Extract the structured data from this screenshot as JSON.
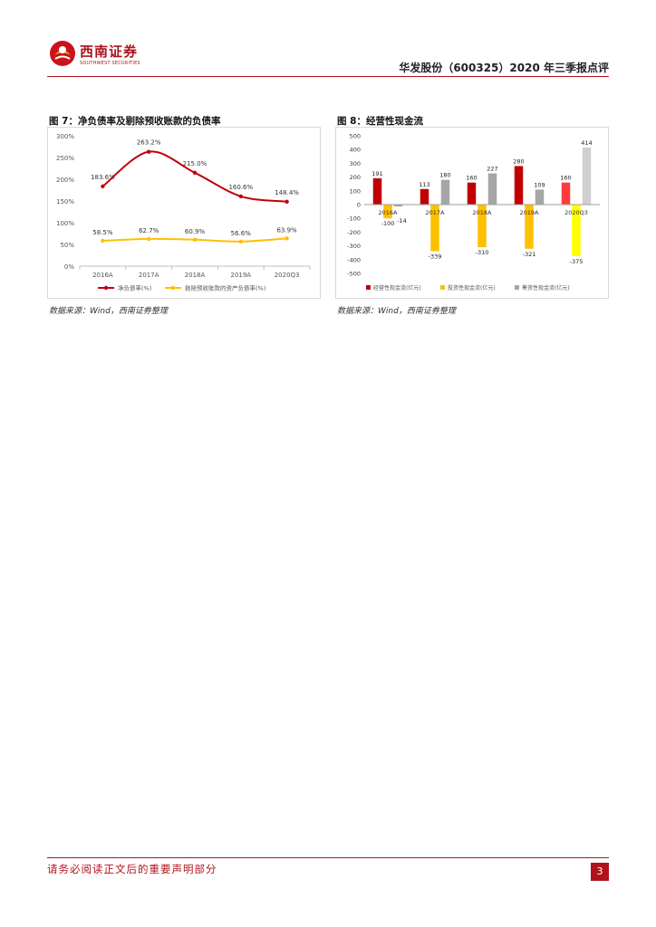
{
  "header": {
    "logo_cn": "西南证券",
    "logo_en": "SOUTHWEST SECURITIES",
    "title": "华发股份（600325）2020 年三季报点评"
  },
  "figures": [
    {
      "title": "图 7：净负债率及剔除预收账款的负债率",
      "source": "数据来源：Wind，西南证券整理"
    },
    {
      "title": "图 8：经营性现金流",
      "source": "数据来源：Wind，西南证券整理"
    }
  ],
  "chart_data": [
    {
      "type": "line",
      "x": [
        "2016A",
        "2017A",
        "2018A",
        "2019A",
        "2020Q3"
      ],
      "series": [
        {
          "name": "净负债率(%)",
          "values": [
            183.6,
            263.2,
            215.0,
            160.6,
            148.4
          ],
          "labels": [
            "183.6%",
            "263.2%",
            "215.0%",
            "160.6%",
            "148.4%"
          ],
          "color": "#c0000a"
        },
        {
          "name": "剔除预收账款的资产负债率(%)",
          "values": [
            58.5,
            62.7,
            60.9,
            56.6,
            63.9
          ],
          "labels": [
            "58.5%",
            "62.7%",
            "60.9%",
            "56.6%",
            "63.9%"
          ],
          "color": "#ffc000"
        }
      ],
      "y_ticks": [
        "0%",
        "50%",
        "100%",
        "150%",
        "200%",
        "250%",
        "300%"
      ],
      "ylim": [
        0,
        300
      ]
    },
    {
      "type": "bar",
      "categories": [
        "2016A",
        "2017A",
        "2018A",
        "2019A",
        "2020Q3"
      ],
      "series": [
        {
          "name": "经营性现金流(亿元)",
          "values": [
            191,
            113,
            160,
            280,
            160
          ],
          "labels": [
            "191",
            "113",
            "160",
            "280",
            "160"
          ]
        },
        {
          "name": "投资性现金流(亿元)",
          "values": [
            -100,
            -339,
            -310,
            -321,
            -375
          ],
          "labels": [
            "-100",
            "-339",
            "-310",
            "-321",
            "-375"
          ]
        },
        {
          "name": "筹资性现金流(亿元)",
          "values": [
            -14,
            180,
            227,
            109,
            414
          ],
          "labels": [
            "-14",
            "180",
            "227",
            "109",
            "414"
          ]
        }
      ],
      "bar_colors": [
        [
          "#c00000",
          "#c00000",
          "#c00000",
          "#c00000",
          "#ff3b3b"
        ],
        [
          "#ffc000",
          "#ffc000",
          "#ffc000",
          "#ffc000",
          "#ffff00"
        ],
        [
          "#a6a6a6",
          "#a6a6a6",
          "#a6a6a6",
          "#a6a6a6",
          "#cfcfcf"
        ]
      ],
      "legend_colors": [
        "#c00000",
        "#ffc000",
        "#a6a6a6"
      ],
      "y_ticks": [
        "-500",
        "-400",
        "-300",
        "-200",
        "-100",
        "0",
        "100",
        "200",
        "300",
        "400",
        "500"
      ],
      "ylim": [
        -500,
        500
      ]
    }
  ],
  "footer": {
    "notice": "请务必阅读正文后的重要声明部分",
    "page": "3"
  }
}
